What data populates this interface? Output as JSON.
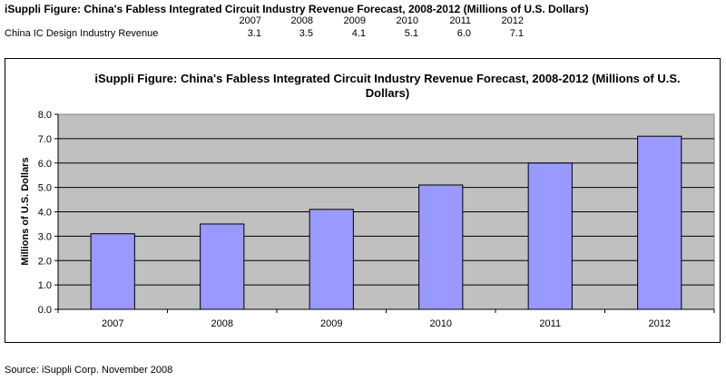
{
  "table": {
    "title": "iSuppli Figure: China's Fabless Integrated Circuit Industry Revenue Forecast, 2008-2012 (Millions of U.S. Dollars)",
    "row_label": "China IC Design Industry Revenue",
    "years": [
      "2007",
      "2008",
      "2009",
      "2010",
      "2011",
      "2012"
    ],
    "values": [
      "3.1",
      "3.5",
      "4.1",
      "5.1",
      "6.0",
      "7.1"
    ]
  },
  "chart_data": {
    "type": "bar",
    "title": "iSuppli Figure: China's Fabless Integrated Circuit Industry Revenue Forecast, 2008-2012 (Millions of U.S. Dollars)",
    "title_lines": [
      "iSuppli Figure: China's Fabless Integrated Circuit Industry Revenue Forecast, 2008-2012 (Millions of U.S.",
      "Dollars)"
    ],
    "xlabel": "",
    "ylabel": "Millions of U.S. Dollars",
    "categories": [
      "2007",
      "2008",
      "2009",
      "2010",
      "2011",
      "2012"
    ],
    "values": [
      3.1,
      3.5,
      4.1,
      5.1,
      6.0,
      7.1
    ],
    "ylim": [
      0,
      8
    ],
    "yticks": [
      "0.0",
      "1.0",
      "2.0",
      "3.0",
      "4.0",
      "5.0",
      "6.0",
      "7.0",
      "8.0"
    ],
    "grid": true,
    "legend": "none",
    "colors": {
      "bar": "#9999ff",
      "plot_bg": "#c0c0c0",
      "outline": "#000000"
    }
  },
  "footer": {
    "source": "Source: iSuppli Corp. November 2008"
  }
}
